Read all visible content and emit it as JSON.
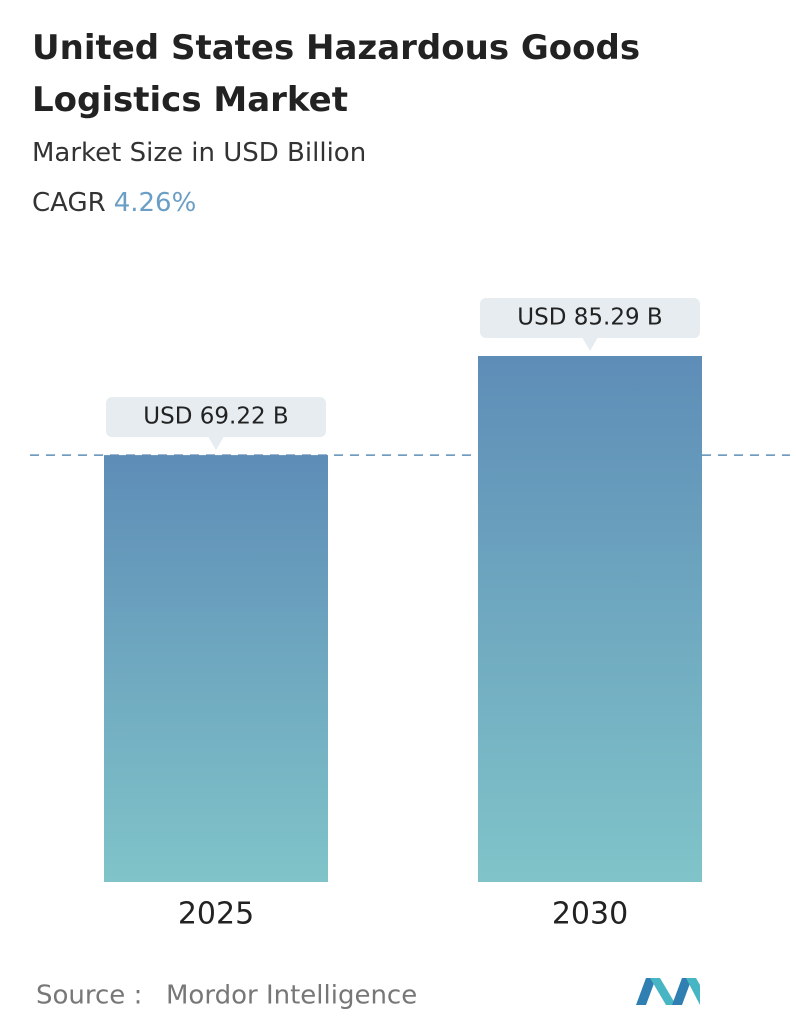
{
  "chart_data": {
    "type": "bar",
    "title": "United States Hazardous Goods Logistics Market",
    "subtitle": "Market Size in USD Billion",
    "cagr_label": "CAGR",
    "cagr_value": "4.26%",
    "categories": [
      "2025",
      "2030"
    ],
    "values": [
      69.22,
      85.29
    ],
    "value_labels": [
      "USD 69.22 B",
      "USD 85.29 B"
    ],
    "colors": [
      "#5e8db7",
      "#80c4c9"
    ],
    "source_label": "Source :",
    "source": "Mordor Intelligence"
  }
}
